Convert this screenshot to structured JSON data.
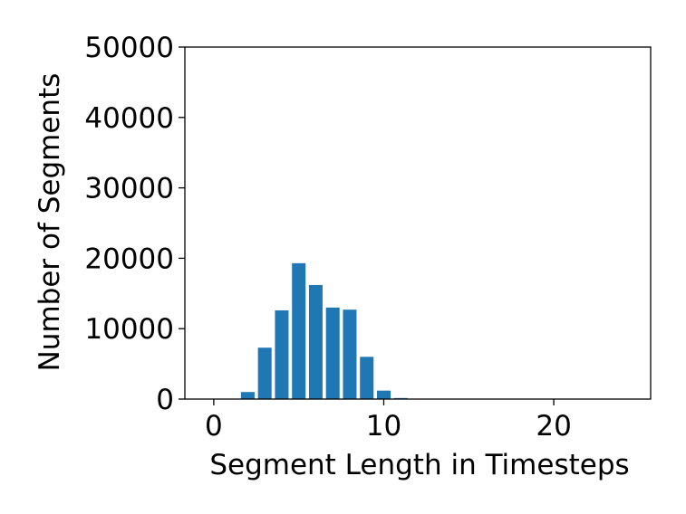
{
  "chart_data": {
    "type": "bar",
    "xlabel": "Segment Length in Timesteps",
    "ylabel": "Number of Segments",
    "xlim": [
      -1.7,
      25.7
    ],
    "ylim": [
      0,
      50000
    ],
    "xticks": [
      0,
      10,
      20
    ],
    "yticks": [
      0,
      10000,
      20000,
      30000,
      40000,
      50000
    ],
    "grid": false,
    "bar_color": "#1f77b4",
    "x": [
      1,
      2,
      3,
      4,
      5,
      6,
      7,
      8,
      9,
      10,
      11,
      12,
      13,
      14,
      15,
      16,
      17,
      18,
      19,
      20,
      21,
      22,
      23,
      24
    ],
    "values": [
      0,
      1000,
      7300,
      12600,
      19300,
      16200,
      13000,
      12700,
      6000,
      1200,
      150,
      20,
      0,
      0,
      0,
      0,
      0,
      0,
      0,
      0,
      0,
      0,
      0,
      0
    ]
  }
}
